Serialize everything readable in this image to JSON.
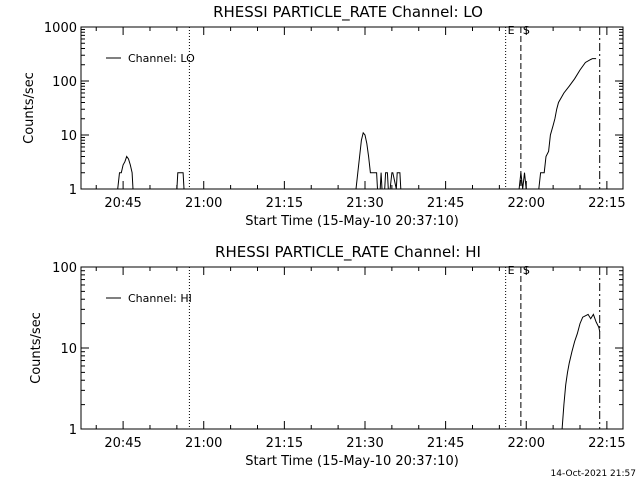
{
  "chart_data": [
    {
      "type": "line",
      "title": "RHESSI PARTICLE_RATE Channel: LO",
      "xlabel": "Start Time (15-May-10 20:37:10)",
      "ylabel": "Counts/sec",
      "yscale": "log",
      "ylim": [
        1,
        1000
      ],
      "xlim": [
        "20:37:10",
        "22:18:00"
      ],
      "xticks": [
        "20:45",
        "21:00",
        "21:15",
        "21:30",
        "21:45",
        "22:00",
        "22:15"
      ],
      "yticks": [
        "1",
        "10",
        "100",
        "1000"
      ],
      "legend": {
        "entry": "Channel: LO",
        "placement": "top-left"
      },
      "series": [
        {
          "name": "Channel: LO",
          "x": [
            "20:37:10",
            "20:44:00",
            "20:44:20",
            "20:44:40",
            "20:45:00",
            "20:45:20",
            "20:45:40",
            "20:46:00",
            "20:46:20",
            "20:46:40",
            "20:46:50",
            "20:55:00",
            "20:55:10",
            "20:56:10",
            "20:56:20",
            "21:28:20",
            "21:28:40",
            "21:29:00",
            "21:29:20",
            "21:29:40",
            "21:30:00",
            "21:30:20",
            "21:30:40",
            "21:31:00",
            "21:31:30",
            "21:32:10",
            "21:32:20",
            "21:32:50",
            "21:33:00",
            "21:33:10",
            "21:33:40",
            "21:33:50",
            "21:34:10",
            "21:34:20",
            "21:34:40",
            "21:35:00",
            "21:35:10",
            "21:35:50",
            "21:36:00",
            "21:36:30",
            "21:36:40",
            "21:37:50",
            "21:38:00",
            "21:58:40",
            "21:59:00",
            "21:59:20",
            "21:59:40",
            "22:00:00",
            "22:02:20",
            "22:02:40",
            "22:03:00",
            "22:03:20",
            "22:03:40",
            "22:04:10",
            "22:04:30",
            "22:05:00",
            "22:05:20",
            "22:05:40",
            "22:06:00",
            "22:07:00",
            "22:08:00",
            "22:09:00",
            "22:10:00",
            "22:11:00",
            "22:12:00",
            "22:12:20",
            "22:13:00"
          ],
          "values": [
            1,
            1,
            2,
            2,
            2.8,
            3.2,
            4,
            3.6,
            2.8,
            2,
            1,
            1,
            2,
            2,
            1,
            1,
            2,
            4,
            8,
            11,
            10,
            7,
            4,
            2,
            2,
            2,
            1,
            1,
            2,
            1,
            1,
            2,
            2,
            1,
            1,
            2,
            2,
            1,
            2,
            2,
            1,
            1,
            1,
            1,
            2,
            1,
            2,
            1,
            1,
            2,
            2,
            2,
            4,
            5,
            10,
            15,
            20,
            30,
            40,
            60,
            80,
            110,
            160,
            220,
            250,
            260,
            260
          ]
        }
      ],
      "annotations": [
        {
          "label": "",
          "x": "20:57:20",
          "style": "dotted"
        },
        {
          "label": "E",
          "x": "21:56:10",
          "style": "dotted"
        },
        {
          "label": "S",
          "x": "21:59:00",
          "style": "dashed"
        },
        {
          "label": "",
          "x": "22:13:40",
          "style": "dash-dot"
        }
      ]
    },
    {
      "type": "line",
      "title": "RHESSI PARTICLE_RATE Channel: HI",
      "xlabel": "Start Time (15-May-10 20:37:10)",
      "ylabel": "Counts/sec",
      "yscale": "log",
      "ylim": [
        1,
        100
      ],
      "xlim": [
        "20:37:10",
        "22:18:00"
      ],
      "xticks": [
        "20:45",
        "21:00",
        "21:15",
        "21:30",
        "21:45",
        "22:00",
        "22:15"
      ],
      "yticks": [
        "1",
        "10",
        "100"
      ],
      "legend": {
        "entry": "Channel: HI",
        "placement": "top-left"
      },
      "series": [
        {
          "name": "Channel: HI",
          "x": [
            "22:06:40",
            "22:07:00",
            "22:07:20",
            "22:07:40",
            "22:08:00",
            "22:08:30",
            "22:09:00",
            "22:09:30",
            "22:10:00",
            "22:10:30",
            "22:11:00",
            "22:11:30",
            "22:12:00",
            "22:12:30",
            "22:13:00",
            "22:13:30",
            "22:13:40"
          ],
          "values": [
            1,
            2,
            3.5,
            5,
            6.5,
            9,
            12,
            15,
            20,
            24,
            25,
            26,
            23,
            26,
            21,
            18,
            16
          ]
        }
      ],
      "annotations": [
        {
          "label": "",
          "x": "20:57:20",
          "style": "dotted"
        },
        {
          "label": "E",
          "x": "21:56:10",
          "style": "dotted"
        },
        {
          "label": "S",
          "x": "21:59:00",
          "style": "dashed"
        },
        {
          "label": "",
          "x": "22:13:40",
          "style": "dash-dot"
        }
      ]
    }
  ],
  "footer": {
    "timestamp": "14-Oct-2021 21:57"
  }
}
